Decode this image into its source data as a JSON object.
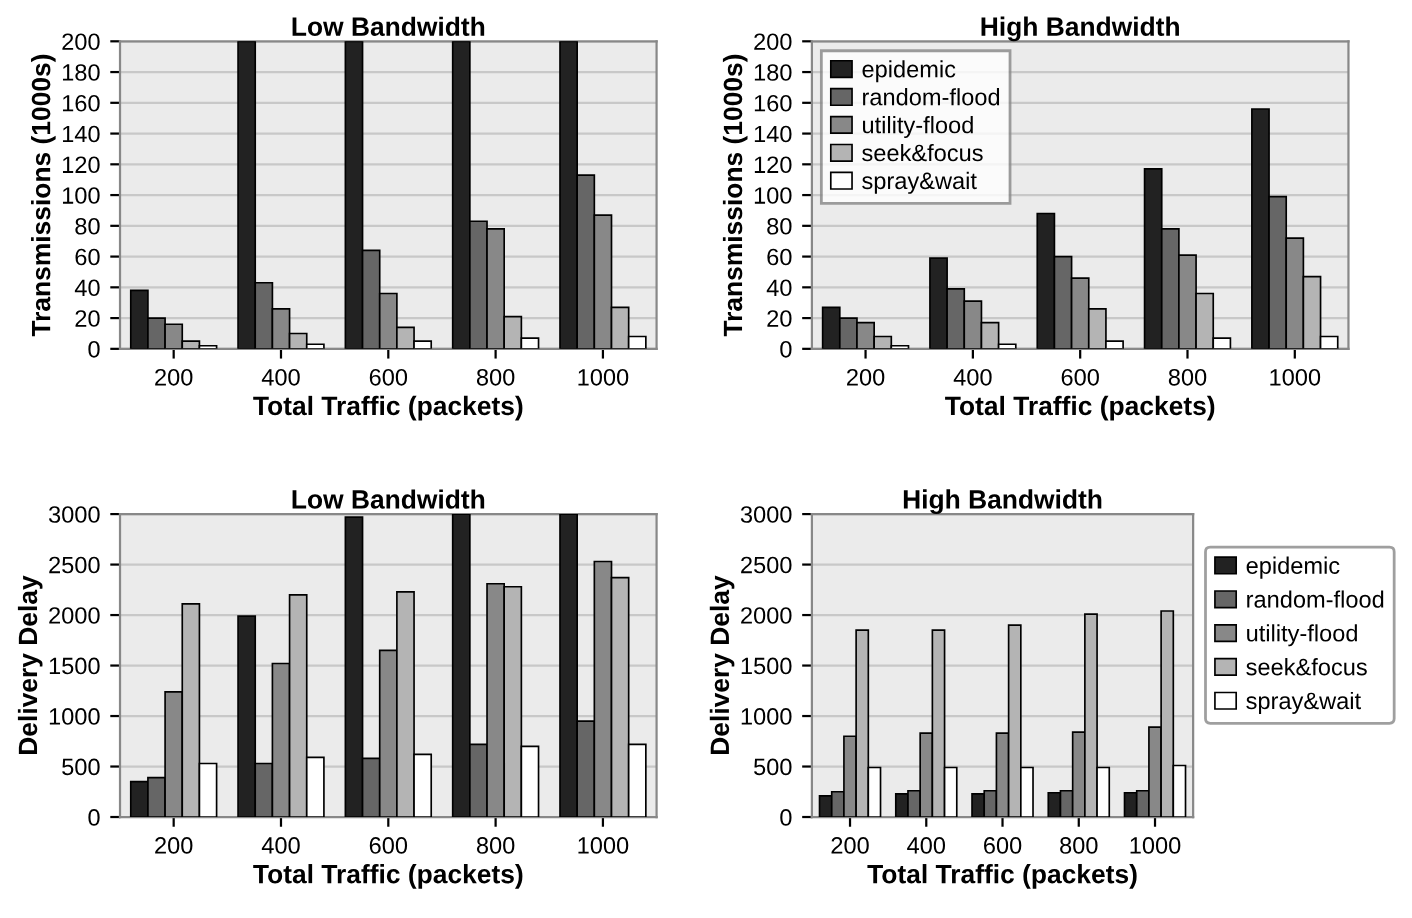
{
  "chart_data": [
    {
      "type": "bar",
      "title": "Low Bandwidth",
      "xlabel": "Total Traffic (packets)",
      "ylabel": "Transmissions (1000s)",
      "categories": [
        "200",
        "400",
        "600",
        "800",
        "1000"
      ],
      "ylim": [
        0,
        200
      ],
      "yticks": [
        0,
        20,
        40,
        60,
        80,
        100,
        120,
        140,
        160,
        180,
        200
      ],
      "grid": "y",
      "series": [
        {
          "color": "#222222",
          "values": [
            38,
            200,
            200,
            200,
            200
          ]
        },
        {
          "color": "#666666",
          "values": [
            20,
            43,
            64,
            83,
            113
          ]
        },
        {
          "color": "#888888",
          "values": [
            16,
            26,
            36,
            78,
            87
          ]
        },
        {
          "color": "#b4b4b4",
          "values": [
            5,
            10,
            14,
            21,
            27
          ]
        },
        {
          "color": "#ffffff",
          "values": [
            2,
            3,
            5,
            7,
            8
          ]
        }
      ]
    },
    {
      "type": "bar",
      "title": "High Bandwidth",
      "xlabel": "Total Traffic (packets)",
      "ylabel": "Transmissions (1000s)",
      "categories": [
        "200",
        "400",
        "600",
        "800",
        "1000"
      ],
      "ylim": [
        0,
        200
      ],
      "yticks": [
        0,
        20,
        40,
        60,
        80,
        100,
        120,
        140,
        160,
        180,
        200
      ],
      "grid": "y",
      "legend": "top left",
      "series": [
        {
          "name": "epidemic",
          "color": "#222222",
          "values": [
            27,
            59,
            88,
            117,
            156
          ]
        },
        {
          "name": "random-flood",
          "color": "#666666",
          "values": [
            20,
            39,
            60,
            78,
            99
          ]
        },
        {
          "name": "utility-flood",
          "color": "#888888",
          "values": [
            17,
            31,
            46,
            61,
            72
          ]
        },
        {
          "name": "seek&focus",
          "color": "#b4b4b4",
          "values": [
            8,
            17,
            26,
            36,
            47
          ]
        },
        {
          "name": "spray&wait",
          "color": "#ffffff",
          "values": [
            2,
            3,
            5,
            7,
            8
          ]
        }
      ]
    },
    {
      "type": "bar",
      "title": "Low Bandwidth",
      "xlabel": "Total Traffic (packets)",
      "ylabel": "Delivery Delay",
      "categories": [
        "200",
        "400",
        "600",
        "800",
        "1000"
      ],
      "ylim": [
        0,
        3000
      ],
      "yticks": [
        0,
        500,
        1000,
        1500,
        2000,
        2500,
        3000
      ],
      "grid": "y",
      "series": [
        {
          "color": "#222222",
          "values": [
            350,
            1990,
            2970,
            3000,
            3000
          ]
        },
        {
          "color": "#666666",
          "values": [
            390,
            530,
            580,
            720,
            950
          ]
        },
        {
          "color": "#888888",
          "values": [
            1240,
            1520,
            1650,
            2310,
            2530
          ]
        },
        {
          "color": "#b4b4b4",
          "values": [
            2110,
            2200,
            2230,
            2280,
            2370
          ]
        },
        {
          "color": "#ffffff",
          "values": [
            530,
            590,
            620,
            700,
            720
          ]
        }
      ]
    },
    {
      "type": "bar",
      "title": "High Bandwidth",
      "xlabel": "Total Traffic (packets)",
      "ylabel": "Delivery Delay",
      "categories": [
        "200",
        "400",
        "600",
        "800",
        "1000"
      ],
      "ylim": [
        0,
        3000
      ],
      "yticks": [
        0,
        500,
        1000,
        1500,
        2000,
        2500,
        3000
      ],
      "grid": "y",
      "legend": "right",
      "series": [
        {
          "name": "epidemic",
          "color": "#222222",
          "values": [
            210,
            230,
            230,
            240,
            240
          ]
        },
        {
          "name": "random-flood",
          "color": "#666666",
          "values": [
            250,
            260,
            260,
            260,
            260
          ]
        },
        {
          "name": "utility-flood",
          "color": "#888888",
          "values": [
            800,
            830,
            830,
            840,
            890
          ]
        },
        {
          "name": "seek&focus",
          "color": "#b4b4b4",
          "values": [
            1850,
            1850,
            1900,
            2010,
            2040
          ]
        },
        {
          "name": "spray&wait",
          "color": "#ffffff",
          "values": [
            490,
            490,
            490,
            490,
            510
          ]
        }
      ]
    }
  ]
}
